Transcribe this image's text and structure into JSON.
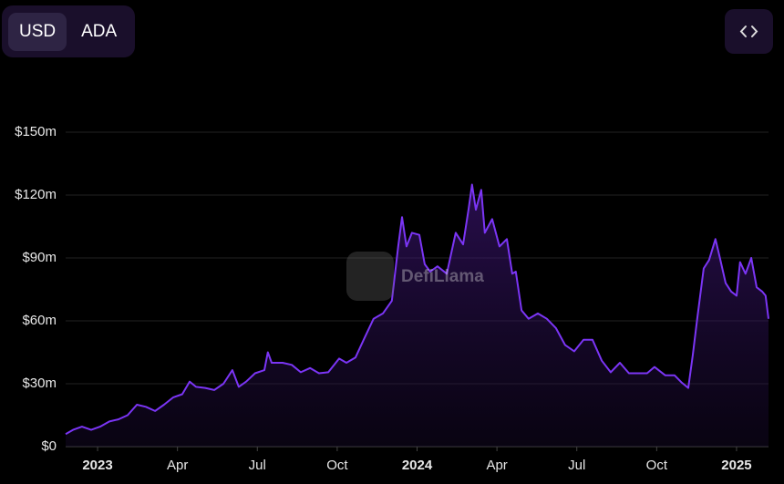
{
  "controls": {
    "currency_options": [
      "USD",
      "ADA"
    ]
  },
  "chart_data": {
    "type": "area",
    "watermark": "DefiLlama",
    "color": "#7b35f5",
    "grid": true,
    "x": [
      2022.9,
      2022.923,
      2022.951,
      2022.98,
      2023.008,
      2023.037,
      2023.065,
      2023.094,
      2023.123,
      2023.151,
      2023.18,
      2023.208,
      2023.237,
      2023.265,
      2023.288,
      2023.308,
      2023.337,
      2023.365,
      2023.394,
      2023.422,
      2023.442,
      2023.465,
      2023.493,
      2023.522,
      2023.533,
      2023.545,
      2023.579,
      2023.608,
      2023.636,
      2023.665,
      2023.693,
      2023.722,
      2023.756,
      2023.779,
      2023.807,
      2023.836,
      2023.864,
      2023.893,
      2023.921,
      2023.941,
      2023.953,
      2023.967,
      2023.984,
      2024.007,
      2024.024,
      2024.041,
      2024.064,
      2024.093,
      2024.121,
      2024.144,
      2024.161,
      2024.172,
      2024.184,
      2024.201,
      2024.212,
      2024.235,
      2024.258,
      2024.281,
      2024.298,
      2024.309,
      2024.327,
      2024.349,
      2024.378,
      2024.406,
      2024.435,
      2024.463,
      2024.492,
      2024.521,
      2024.549,
      2024.578,
      2024.606,
      2024.635,
      2024.663,
      2024.692,
      2024.72,
      2024.743,
      2024.777,
      2024.806,
      2024.829,
      2024.849,
      2024.863,
      2024.877,
      2024.897,
      2024.914,
      2024.934,
      2024.948,
      2024.966,
      2024.983,
      2025.0,
      2025.011,
      2025.028,
      2025.046,
      2025.063,
      2025.08,
      2025.091,
      2025.1
    ],
    "values": [
      6000000,
      8000000,
      9500000,
      8000000,
      9500000,
      12000000,
      13000000,
      15000000,
      20000000,
      19000000,
      17000000,
      20000000,
      23500000,
      25000000,
      31000000,
      28500000,
      28000000,
      27000000,
      30000000,
      36500000,
      28500000,
      31000000,
      35000000,
      36500000,
      45000000,
      40000000,
      40000000,
      39000000,
      35500000,
      37500000,
      35000000,
      35500000,
      42000000,
      40000000,
      42500000,
      52000000,
      61000000,
      63500000,
      69500000,
      95500000,
      109500000,
      95500000,
      102000000,
      101000000,
      87000000,
      83500000,
      86000000,
      82500000,
      102000000,
      96500000,
      113000000,
      125000000,
      113000000,
      122500000,
      102000000,
      108500000,
      95500000,
      99000000,
      82500000,
      83500000,
      65000000,
      61000000,
      63500000,
      61000000,
      56500000,
      48500000,
      45500000,
      51000000,
      51000000,
      41000000,
      35500000,
      40000000,
      35000000,
      35000000,
      35000000,
      38000000,
      34000000,
      34000000,
      30500000,
      28000000,
      43500000,
      61000000,
      85000000,
      89000000,
      99000000,
      90000000,
      78000000,
      74000000,
      72000000,
      88000000,
      82500000,
      90000000,
      76000000,
      74000000,
      72000000,
      61000000
    ],
    "xlim": [
      2022.9,
      2025.1
    ],
    "xticks": [
      {
        "value": 2023.0,
        "label": "2023"
      },
      {
        "value": 2023.25,
        "label": "Apr"
      },
      {
        "value": 2023.5,
        "label": "Jul"
      },
      {
        "value": 2023.75,
        "label": "Oct"
      },
      {
        "value": 2024.0,
        "label": "2024"
      },
      {
        "value": 2024.25,
        "label": "Apr"
      },
      {
        "value": 2024.5,
        "label": "Jul"
      },
      {
        "value": 2024.75,
        "label": "Oct"
      },
      {
        "value": 2025.0,
        "label": "2025"
      }
    ],
    "ylim": [
      0,
      150000000
    ],
    "yticks": [
      {
        "value": 0,
        "label": "$0"
      },
      {
        "value": 30000000,
        "label": "$30m"
      },
      {
        "value": 60000000,
        "label": "$60m"
      },
      {
        "value": 90000000,
        "label": "$90m"
      },
      {
        "value": 120000000,
        "label": "$120m"
      },
      {
        "value": 150000000,
        "label": "$150m"
      }
    ]
  }
}
